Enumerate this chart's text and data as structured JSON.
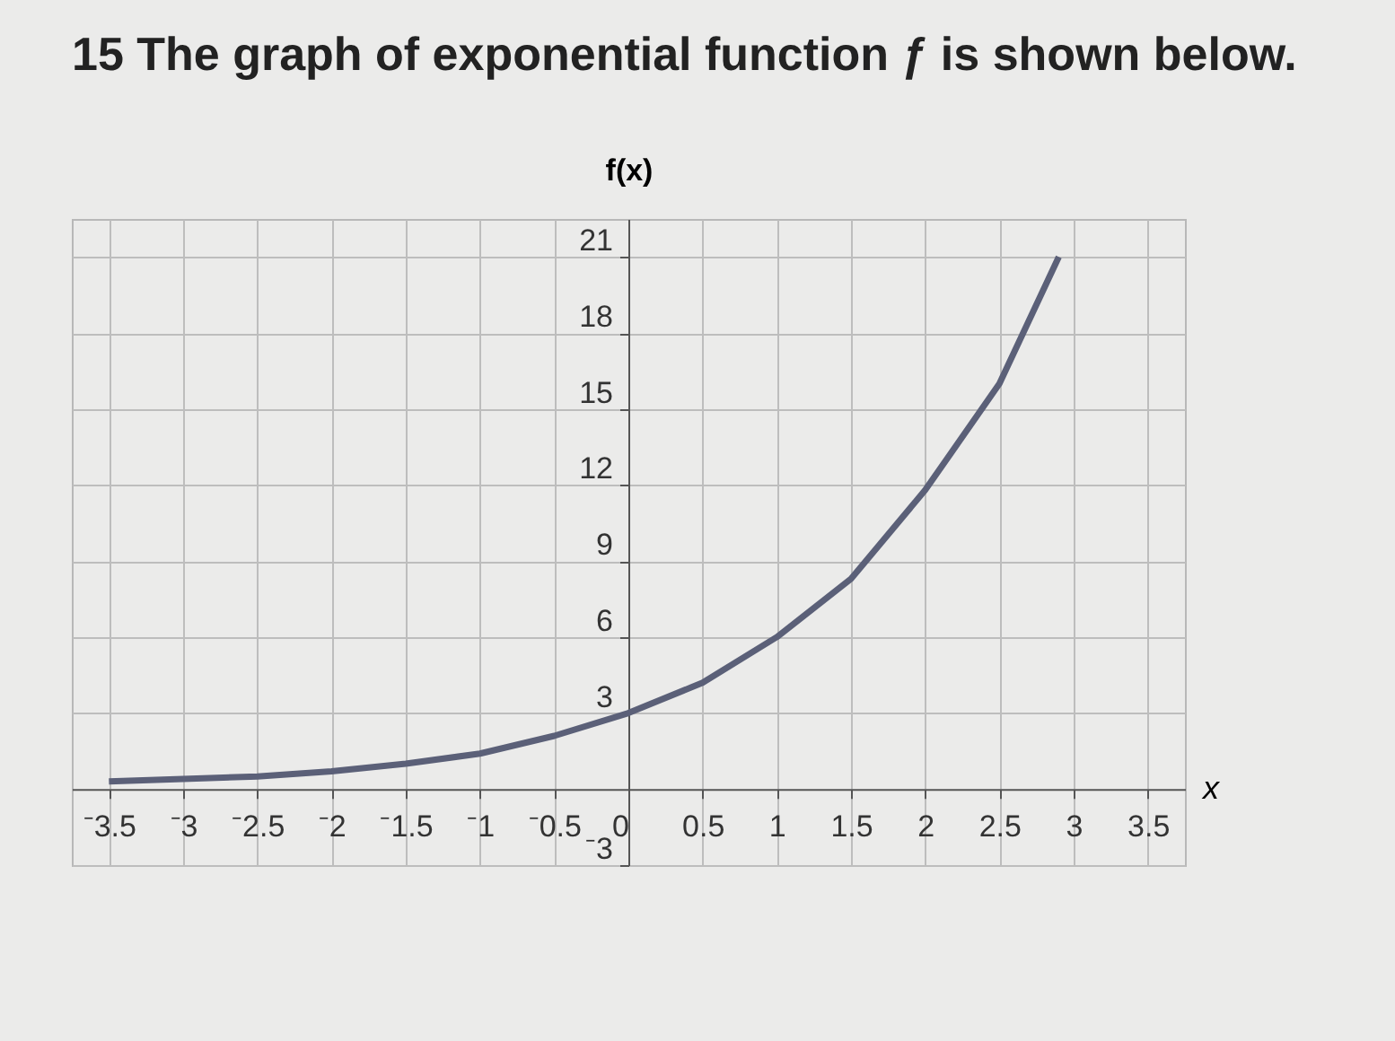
{
  "chart_data": {
    "type": "line",
    "title": "15 The graph of exponential function ƒ is shown below.",
    "xlabel": "x",
    "ylabel": "f(x)",
    "x": [
      -3.5,
      -3,
      -2.5,
      -2,
      -1.5,
      -1,
      -0.5,
      0,
      0.5,
      1,
      1.5,
      2,
      2.5,
      2.9
    ],
    "series": [
      {
        "color": "#5b6078",
        "values": [
          0.3,
          0.4,
          0.5,
          0.7,
          1,
          1.4,
          2.1,
          3,
          4.2,
          6,
          8.3,
          11.8,
          16,
          21
        ]
      }
    ],
    "xlim": [
      -3.75,
      3.75
    ],
    "xticks": [
      {
        "value": -3.5,
        "label": "⁻3.5"
      },
      {
        "value": -3,
        "label": "⁻3"
      },
      {
        "value": -2.5,
        "label": "⁻2.5"
      },
      {
        "value": -2,
        "label": "⁻2"
      },
      {
        "value": -1.5,
        "label": "⁻1.5"
      },
      {
        "value": -1,
        "label": "⁻1"
      },
      {
        "value": -0.5,
        "label": "⁻0.5"
      },
      0,
      0.5,
      1,
      1.5,
      2,
      2.5,
      3,
      3.5
    ],
    "ylim": [
      -3,
      22.5
    ],
    "yticks": [
      {
        "value": -3,
        "label": "⁻3"
      },
      3,
      6,
      9,
      12,
      15,
      18,
      21
    ],
    "grid": true,
    "marker": "none",
    "line_style": "solid"
  }
}
